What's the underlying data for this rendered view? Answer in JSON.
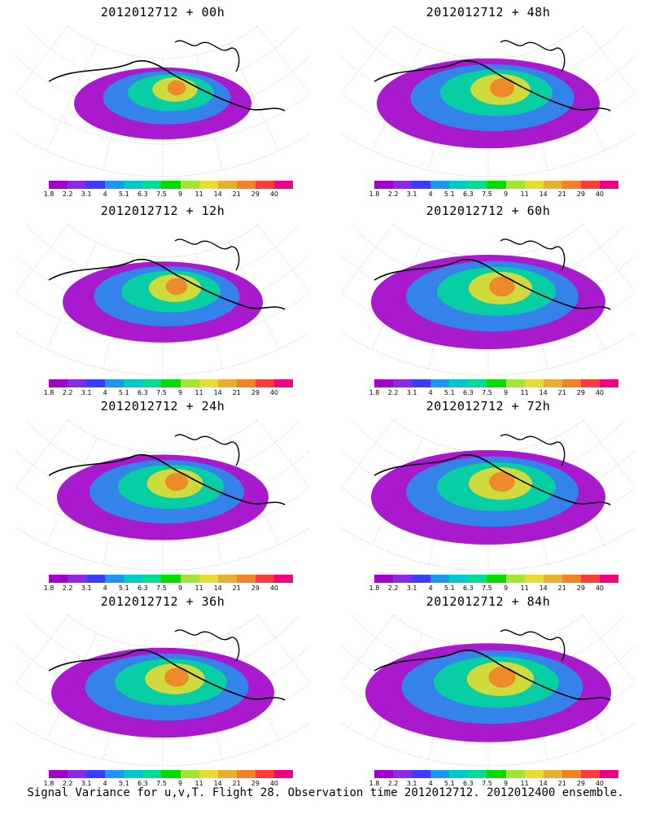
{
  "panels": [
    {
      "title": "2012012712 + 00h",
      "intensity": 0.35
    },
    {
      "title": "2012012712 + 48h",
      "intensity": 0.55
    },
    {
      "title": "2012012712 + 12h",
      "intensity": 0.45
    },
    {
      "title": "2012012712 + 60h",
      "intensity": 0.6
    },
    {
      "title": "2012012712 + 24h",
      "intensity": 0.5
    },
    {
      "title": "2012012712 + 72h",
      "intensity": 0.6
    },
    {
      "title": "2012012712 + 36h",
      "intensity": 0.55
    },
    {
      "title": "2012012712 + 84h",
      "intensity": 0.65
    }
  ],
  "colorbar": {
    "colors": [
      "#a000c8",
      "#8c28e6",
      "#3c3cff",
      "#1e96f0",
      "#00c8c8",
      "#00dc96",
      "#00dc00",
      "#a0e632",
      "#e6dc32",
      "#e6af2d",
      "#f08228",
      "#fa3c3c",
      "#f00082"
    ],
    "labels": [
      "1.8",
      "2.2",
      "3.1",
      "4",
      "5.1",
      "6.3",
      "7.5",
      "9",
      "11",
      "14",
      "21",
      "29",
      "40"
    ]
  },
  "footer": "Signal Variance for u,v,T. Flight 28. Observation time 2012012712. 2012012400 ensemble."
}
